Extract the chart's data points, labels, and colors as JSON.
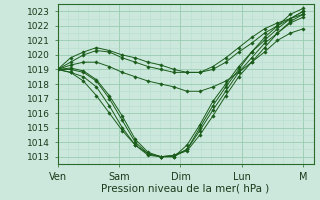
{
  "bg_color": "#cce8dc",
  "grid_color_major": "#99ccb3",
  "grid_color_minor": "#b8ddd0",
  "line_color": "#1a5c1a",
  "xlabel": "Pression niveau de la mer( hPa )",
  "xlabel_fontsize": 7.5,
  "ytick_fontsize": 6.5,
  "xtick_fontsize": 7,
  "ylim": [
    1012.5,
    1023.5
  ],
  "xlim": [
    0,
    100
  ],
  "xtick_labels": [
    "Ven",
    "Sam",
    "Dim",
    "Lun",
    "M"
  ],
  "xtick_positions": [
    0,
    24,
    48,
    72,
    96
  ],
  "yticks": [
    1013,
    1014,
    1015,
    1016,
    1017,
    1018,
    1019,
    1020,
    1021,
    1022,
    1023
  ],
  "series": [
    [
      1019.0,
      1019.0,
      1018.8,
      1018.2,
      1017.0,
      1015.5,
      1014.0,
      1013.2,
      1013.0,
      1013.1,
      1013.5,
      1014.8,
      1016.2,
      1017.5,
      1018.8,
      1019.8,
      1020.8,
      1021.5,
      1022.2,
      1022.6
    ],
    [
      1019.0,
      1019.1,
      1018.9,
      1018.3,
      1017.2,
      1015.8,
      1014.2,
      1013.3,
      1013.0,
      1013.1,
      1013.4,
      1014.5,
      1015.8,
      1017.2,
      1018.5,
      1019.5,
      1020.5,
      1021.5,
      1022.3,
      1022.8
    ],
    [
      1019.0,
      1019.5,
      1020.0,
      1020.3,
      1020.2,
      1019.8,
      1019.5,
      1019.2,
      1019.0,
      1018.8,
      1018.8,
      1018.8,
      1019.0,
      1019.5,
      1020.2,
      1020.8,
      1021.5,
      1022.0,
      1022.5,
      1022.8
    ],
    [
      1019.0,
      1019.8,
      1020.2,
      1020.5,
      1020.3,
      1020.0,
      1019.8,
      1019.5,
      1019.3,
      1019.0,
      1018.8,
      1018.8,
      1019.2,
      1019.8,
      1020.5,
      1021.2,
      1021.8,
      1022.2,
      1022.5,
      1023.0
    ],
    [
      1019.0,
      1018.8,
      1018.2,
      1017.2,
      1016.0,
      1014.8,
      1013.8,
      1013.2,
      1013.0,
      1013.0,
      1013.5,
      1015.0,
      1016.5,
      1017.8,
      1019.0,
      1020.2,
      1021.2,
      1022.0,
      1022.8,
      1023.2
    ],
    [
      1019.0,
      1018.8,
      1018.5,
      1017.8,
      1016.5,
      1015.0,
      1013.8,
      1013.1,
      1013.0,
      1013.0,
      1013.8,
      1015.2,
      1016.8,
      1018.0,
      1019.2,
      1020.2,
      1021.0,
      1021.8,
      1022.5,
      1023.0
    ],
    [
      1019.0,
      1019.3,
      1019.5,
      1019.5,
      1019.2,
      1018.8,
      1018.5,
      1018.2,
      1018.0,
      1017.8,
      1017.5,
      1017.5,
      1017.8,
      1018.2,
      1018.8,
      1019.5,
      1020.2,
      1021.0,
      1021.5,
      1021.8
    ]
  ]
}
